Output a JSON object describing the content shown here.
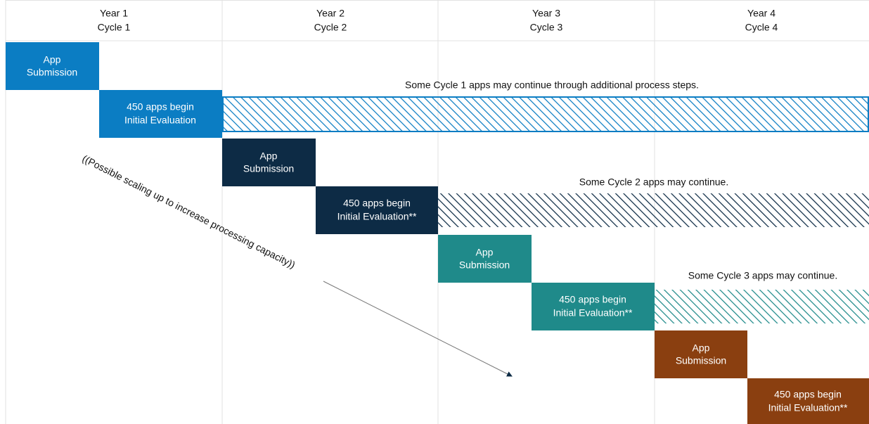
{
  "header": {
    "columns": [
      {
        "year": "Year 1",
        "cycle": "Cycle 1"
      },
      {
        "year": "Year 2",
        "cycle": "Cycle 2"
      },
      {
        "year": "Year 3",
        "cycle": "Cycle 3"
      },
      {
        "year": "Year 4",
        "cycle": "Cycle 4"
      }
    ]
  },
  "cycles": [
    {
      "submission": [
        "App",
        "Submission"
      ],
      "evaluation": [
        "450 apps begin",
        "Initial Evaluation"
      ],
      "note": "Some Cycle 1 apps may continue through additional process steps."
    },
    {
      "submission": [
        "App",
        "Submission"
      ],
      "evaluation": [
        "450 apps begin",
        "Initial Evaluation**"
      ],
      "note": "Some Cycle 2 apps may continue."
    },
    {
      "submission": [
        "App",
        "Submission"
      ],
      "evaluation": [
        "450 apps begin",
        "Initial Evaluation**"
      ],
      "note": "Some Cycle 3 apps may continue."
    },
    {
      "submission": [
        "App",
        "Submission"
      ],
      "evaluation": [
        "450 apps begin",
        "Initial Evaluation**"
      ]
    }
  ],
  "annotation": "((Possible scaling up to increase processing capacity))"
}
